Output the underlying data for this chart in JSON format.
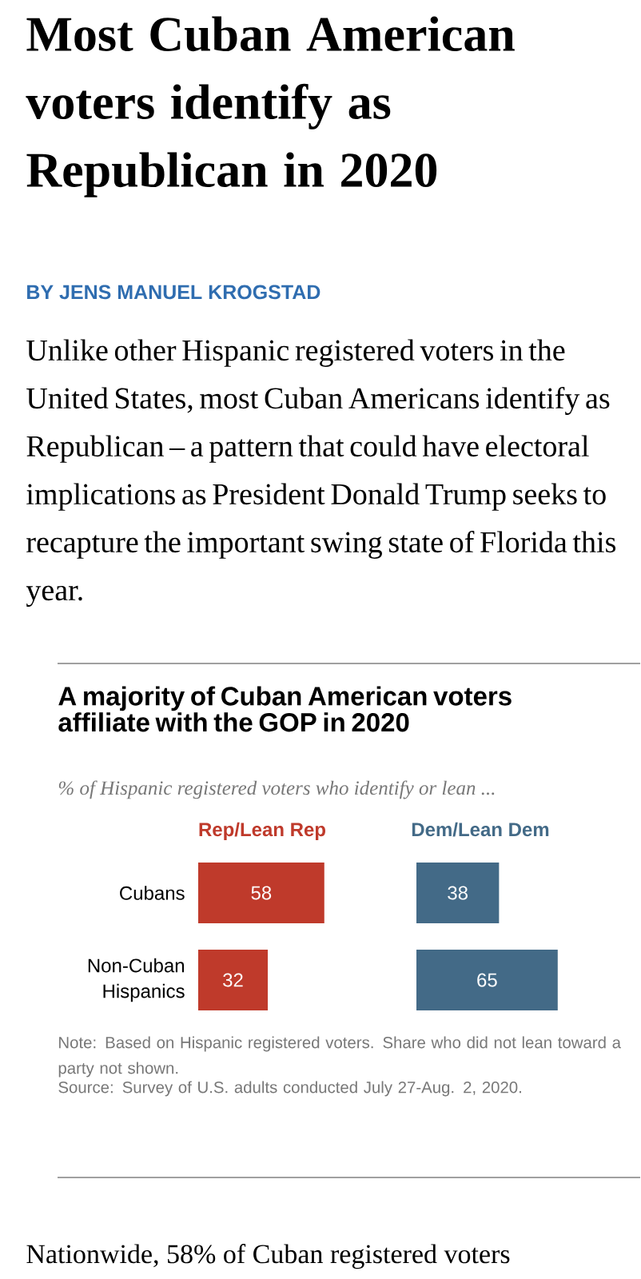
{
  "chart_data": [
    {
      "type": "bar",
      "orientation": "horizontal",
      "title": "A majority of Cuban American voters affiliate with the GOP in 2020",
      "subtitle": "% of Hispanic registered voters who identify or lean ...",
      "categories": [
        "Cubans",
        "Non-Cuban Hispanics"
      ],
      "series": [
        {
          "name": "Rep/Lean Rep",
          "color": "#bf3a2b",
          "values": [
            58,
            32
          ],
          "value_labels": [
            "58",
            "32"
          ]
        }
      ],
      "annotations": [
        "Most Cuban American voters identify as Republican in 2020",
        "BY JENS MANUEL KROGSTAD",
        "Unlike other Hispanic registered voters in the United States, most Cuban Americans identify as Republican – a pattern that could have electoral implications as President Donald Trump seeks to recapture the important swing state of Florida this year.",
        "Note: Based on Hispanic registered voters. Share who did not lean toward a party not shown.",
        "Source: Survey of U.S. adults conducted July 27-Aug. 2, 2020.",
        "Nationwide, 58% of Cuban registered voters"
      ]
    },
    {
      "type": "bar",
      "orientation": "horizontal",
      "categories": [
        null,
        null
      ],
      "series": [
        {
          "name": "Dem/Lean Dem",
          "color": "#436a87",
          "values": [
            38,
            65
          ],
          "value_labels": [
            "38",
            "65"
          ]
        }
      ]
    }
  ]
}
